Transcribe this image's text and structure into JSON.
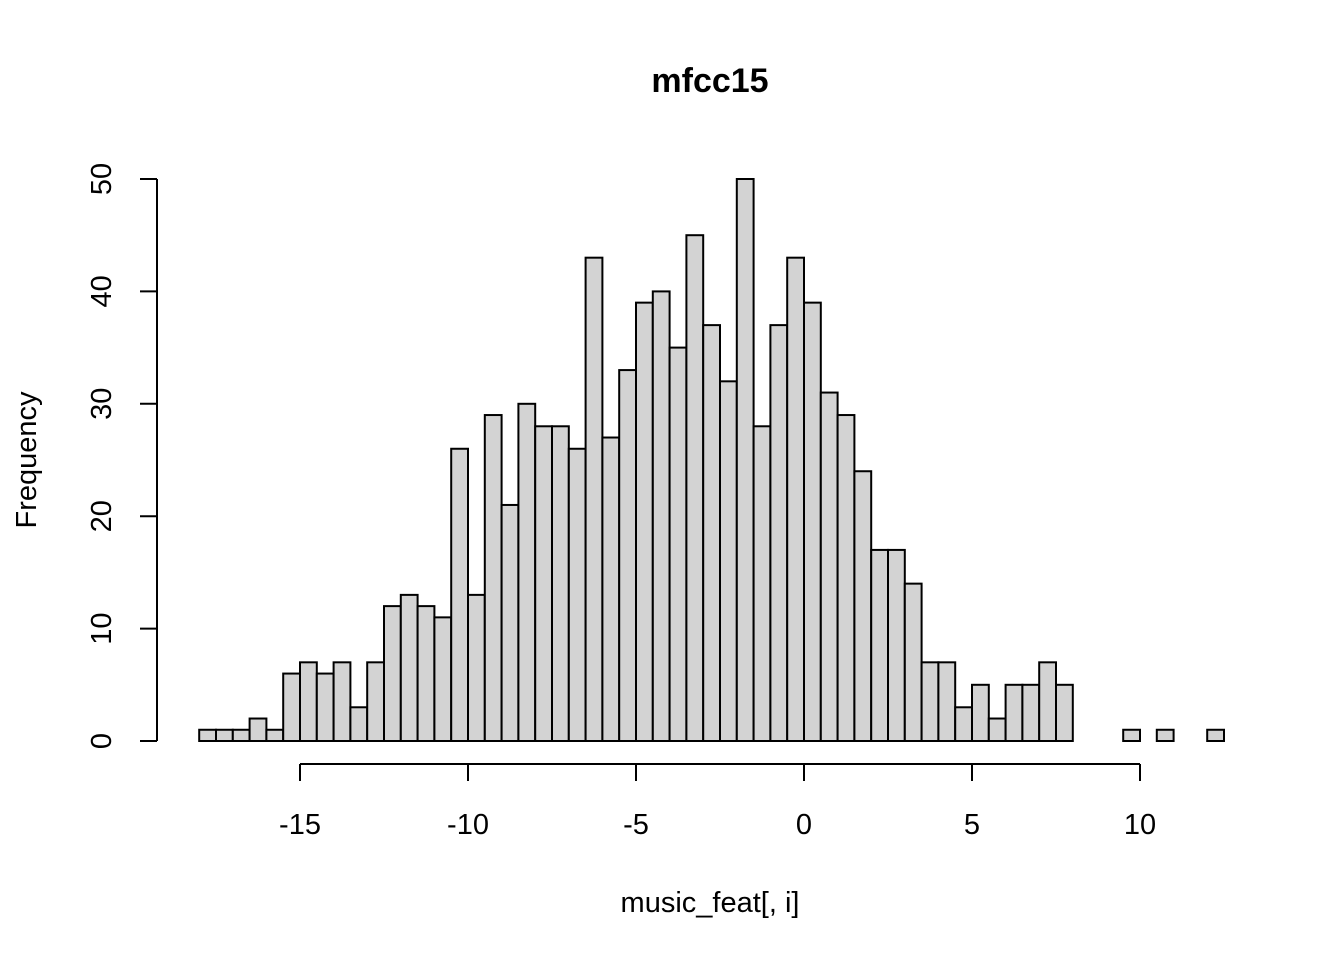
{
  "chart_data": {
    "type": "histogram",
    "title": "mfcc15",
    "xlabel": "music_feat[, i]",
    "ylabel": "Frequency",
    "bin_start": -18,
    "bin_width": 0.5,
    "counts": [
      1,
      1,
      1,
      2,
      1,
      6,
      7,
      6,
      7,
      3,
      7,
      12,
      13,
      12,
      11,
      26,
      13,
      29,
      21,
      30,
      28,
      28,
      26,
      43,
      27,
      33,
      39,
      40,
      35,
      45,
      37,
      32,
      50,
      28,
      37,
      43,
      39,
      31,
      29,
      24,
      17,
      17,
      14,
      7,
      7,
      3,
      5,
      2,
      5,
      5,
      7,
      5,
      0,
      0,
      0,
      1,
      0,
      1,
      0,
      0,
      1
    ],
    "xlim": [
      -18,
      12.5
    ],
    "ylim": [
      0,
      50
    ],
    "xticks": [
      -15,
      -10,
      -5,
      0,
      5,
      10
    ],
    "yticks": [
      0,
      10,
      20,
      30,
      40,
      50
    ],
    "bar_fill": "#d3d3d3",
    "bar_stroke": "#000000"
  }
}
